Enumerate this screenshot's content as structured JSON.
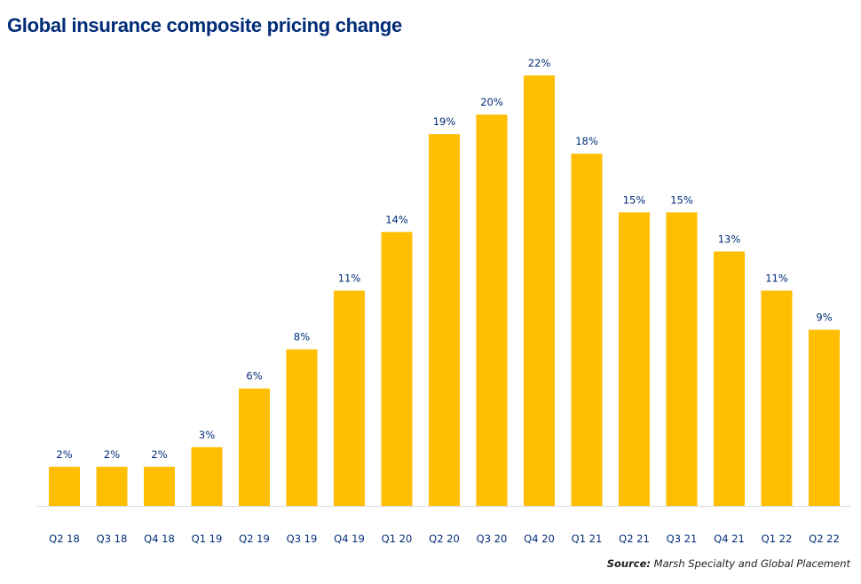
{
  "chart_data": {
    "type": "bar",
    "title": "Global insurance composite pricing change",
    "categories": [
      "Q2 18",
      "Q3 18",
      "Q4 18",
      "Q1 19",
      "Q2 19",
      "Q3 19",
      "Q4 19",
      "Q1 20",
      "Q2 20",
      "Q3 20",
      "Q4 20",
      "Q1 21",
      "Q2 21",
      "Q3 21",
      "Q4 21",
      "Q1 22",
      "Q2 22"
    ],
    "values": [
      2,
      2,
      2,
      3,
      6,
      8,
      11,
      14,
      19,
      20,
      22,
      18,
      15,
      15,
      13,
      11,
      9
    ],
    "data_labels": [
      "2%",
      "2%",
      "2%",
      "3%",
      "6%",
      "8%",
      "11%",
      "14%",
      "19%",
      "20%",
      "22%",
      "18%",
      "15%",
      "15%",
      "13%",
      "11%",
      "9%"
    ],
    "xlabel": "",
    "ylabel": "",
    "ylim": [
      0,
      22
    ],
    "grid": false,
    "bar_color": "#ffbe00",
    "label_color": "#002c77"
  },
  "source": {
    "label": "Source:",
    "text": "Marsh Specialty and Global Placement"
  }
}
